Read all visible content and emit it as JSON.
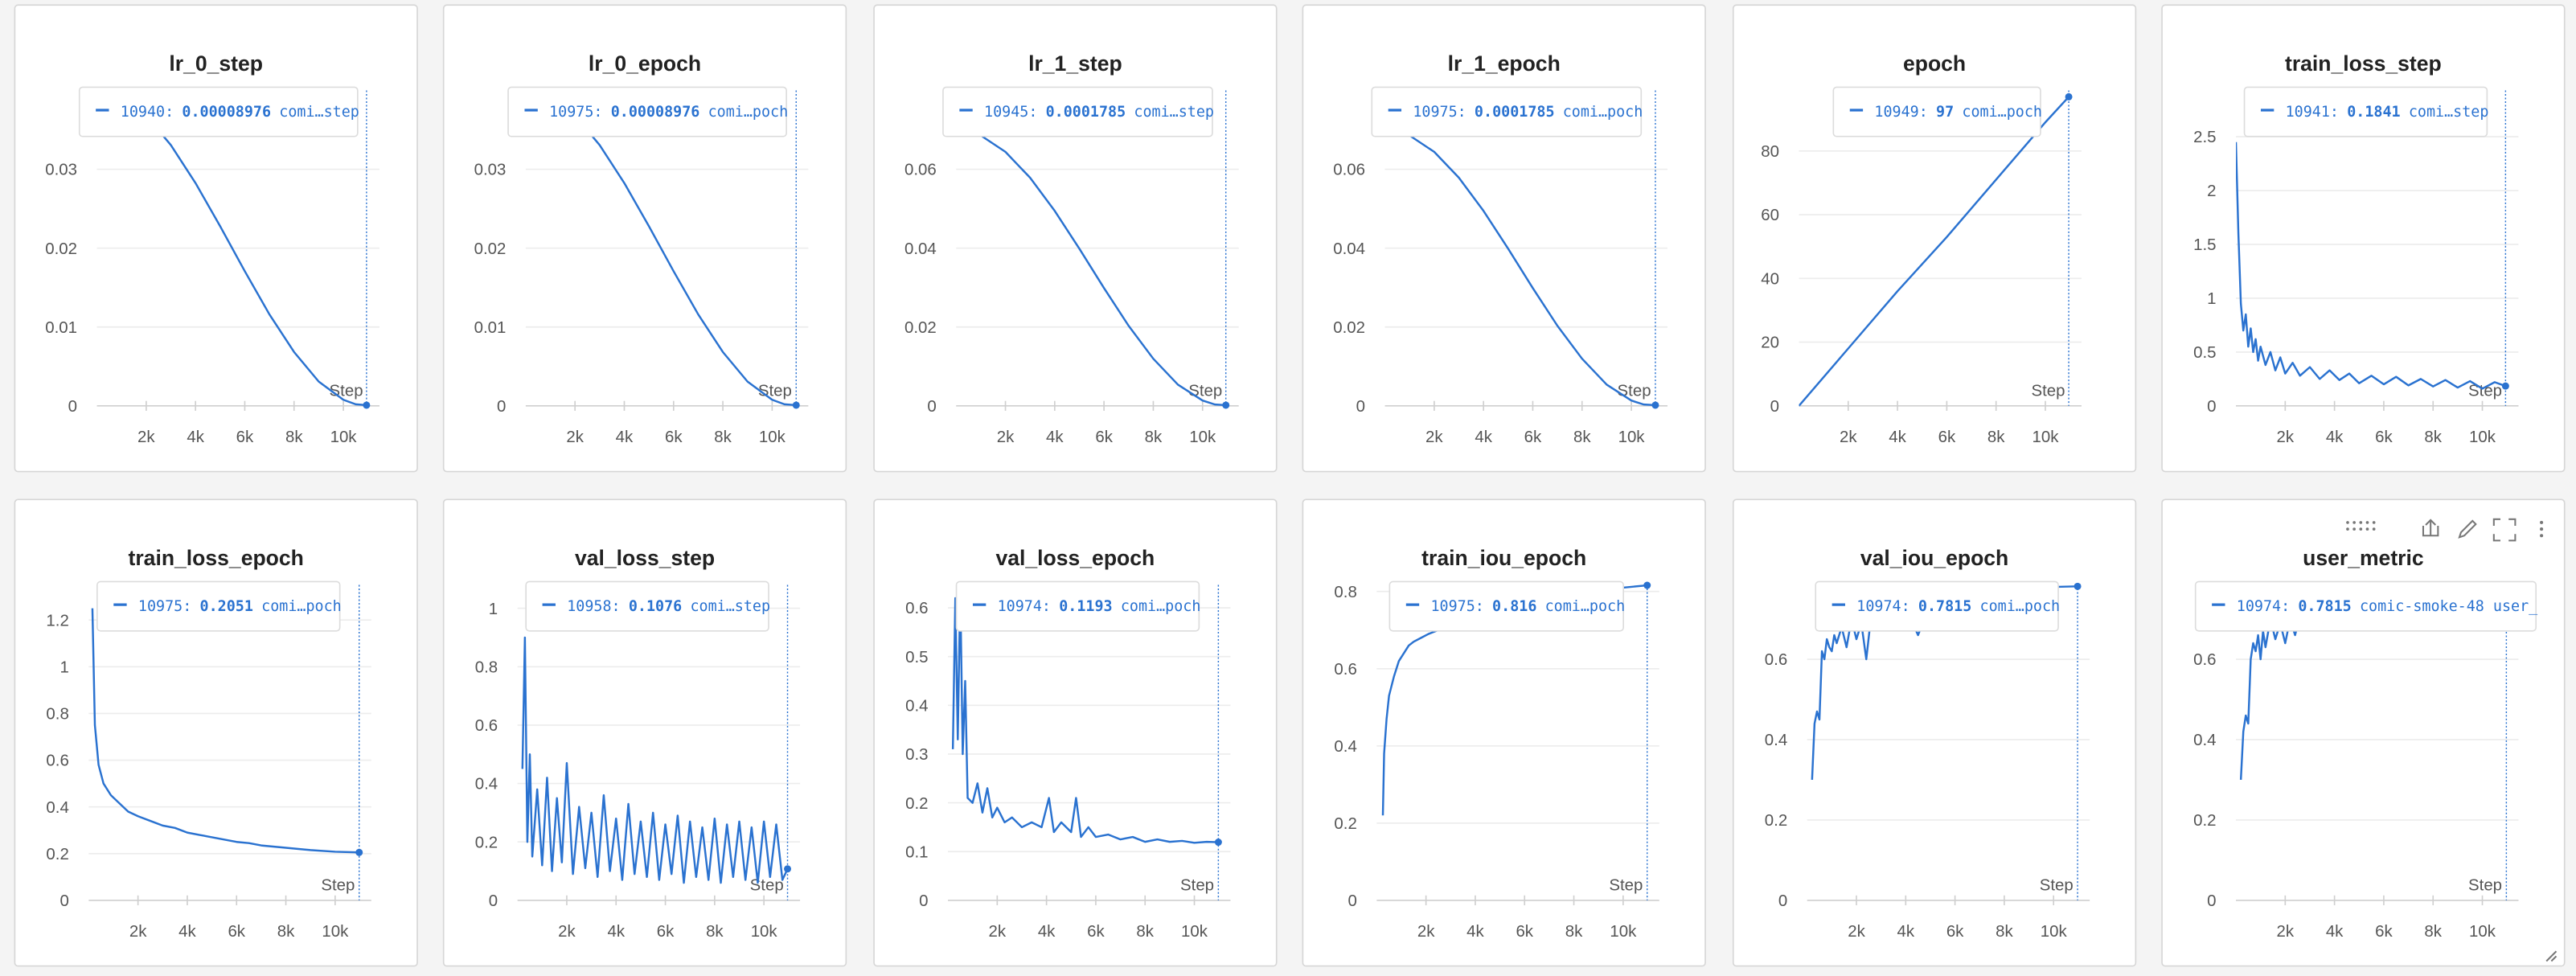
{
  "chart_data": [
    {
      "type": "line",
      "title": "lr_0_step",
      "color": "#2a72d0",
      "grid": true,
      "x_label": "Step",
      "tooltip": {
        "step": {
          "value": 10940,
          "label": "10940:"
        },
        "value": 8.976e-05,
        "run": "comi…step"
      },
      "x": [
        0,
        1000,
        2000,
        3000,
        4000,
        5000,
        6000,
        7000,
        8000,
        9000,
        10000,
        10500,
        10940
      ],
      "values": [
        0.04,
        0.03919,
        0.03681,
        0.03307,
        0.02826,
        0.02278,
        0.01708,
        0.0116,
        0.00683,
        0.00308,
        0.00077,
        0.0002,
        8.976e-05
      ],
      "xlim": [
        0,
        11200
      ],
      "ylim": [
        0,
        0.04
      ],
      "yticks": [
        0,
        0.01,
        0.02,
        0.03
      ],
      "xticks": [
        {
          "value": 2000,
          "label": "2k"
        },
        {
          "value": 4000,
          "label": "4k"
        },
        {
          "value": 6000,
          "label": "6k"
        },
        {
          "value": 8000,
          "label": "8k"
        },
        {
          "value": 10000,
          "label": "10k"
        }
      ]
    },
    {
      "type": "line",
      "title": "lr_0_epoch",
      "color": "#2a72d0",
      "grid": true,
      "x_label": "Step",
      "tooltip": {
        "step": {
          "value": 10975,
          "label": "10975:"
        },
        "value": 8.976e-05,
        "run": "comi…poch"
      },
      "x": [
        0,
        1000,
        2000,
        3000,
        4000,
        5000,
        6000,
        7000,
        8000,
        9000,
        10000,
        10500,
        10975
      ],
      "values": [
        0.04,
        0.03919,
        0.03681,
        0.03307,
        0.02826,
        0.02278,
        0.01708,
        0.0116,
        0.00683,
        0.00308,
        0.00077,
        0.0002,
        8.976e-05
      ],
      "xlim": [
        0,
        11200
      ],
      "ylim": [
        0,
        0.04
      ],
      "yticks": [
        0,
        0.01,
        0.02,
        0.03
      ],
      "xticks": [
        {
          "value": 2000,
          "label": "2k"
        },
        {
          "value": 4000,
          "label": "4k"
        },
        {
          "value": 6000,
          "label": "6k"
        },
        {
          "value": 8000,
          "label": "8k"
        },
        {
          "value": 10000,
          "label": "10k"
        }
      ]
    },
    {
      "type": "line",
      "title": "lr_1_step",
      "color": "#2a72d0",
      "grid": true,
      "x_label": "Step",
      "tooltip": {
        "step": {
          "value": 10945,
          "label": "10945:"
        },
        "value": 0.0001785,
        "run": "comi…step"
      },
      "x": [
        0,
        1000,
        2000,
        3000,
        4000,
        5000,
        6000,
        7000,
        8000,
        9000,
        10000,
        10500,
        10945
      ],
      "values": [
        0.07,
        0.06858,
        0.06442,
        0.05787,
        0.04946,
        0.03987,
        0.02988,
        0.02031,
        0.01196,
        0.00538,
        0.00135,
        0.00035,
        0.0001785
      ],
      "xlim": [
        0,
        11200
      ],
      "ylim": [
        0,
        0.08
      ],
      "yticks": [
        0,
        0.02,
        0.04,
        0.06
      ],
      "xticks": [
        {
          "value": 2000,
          "label": "2k"
        },
        {
          "value": 4000,
          "label": "4k"
        },
        {
          "value": 6000,
          "label": "6k"
        },
        {
          "value": 8000,
          "label": "8k"
        },
        {
          "value": 10000,
          "label": "10k"
        }
      ]
    },
    {
      "type": "line",
      "title": "lr_1_epoch",
      "color": "#2a72d0",
      "grid": true,
      "x_label": "Step",
      "tooltip": {
        "step": {
          "value": 10975,
          "label": "10975:"
        },
        "value": 0.0001785,
        "run": "comi…poch"
      },
      "x": [
        0,
        1000,
        2000,
        3000,
        4000,
        5000,
        6000,
        7000,
        8000,
        9000,
        10000,
        10500,
        10975
      ],
      "values": [
        0.07,
        0.06858,
        0.06442,
        0.05787,
        0.04946,
        0.03987,
        0.02988,
        0.02031,
        0.01196,
        0.00538,
        0.00135,
        0.00035,
        0.0001785
      ],
      "xlim": [
        0,
        11200
      ],
      "ylim": [
        0,
        0.08
      ],
      "yticks": [
        0,
        0.02,
        0.04,
        0.06
      ],
      "xticks": [
        {
          "value": 2000,
          "label": "2k"
        },
        {
          "value": 4000,
          "label": "4k"
        },
        {
          "value": 6000,
          "label": "6k"
        },
        {
          "value": 8000,
          "label": "8k"
        },
        {
          "value": 10000,
          "label": "10k"
        }
      ]
    },
    {
      "type": "line",
      "title": "epoch",
      "color": "#2a72d0",
      "grid": true,
      "x_label": "Step",
      "tooltip": {
        "step": {
          "value": 10949,
          "label": "10949:"
        },
        "value": 97,
        "run": "comi…poch"
      },
      "x": [
        0,
        2000,
        4000,
        6000,
        8000,
        10000,
        10949
      ],
      "values": [
        0,
        18,
        36,
        53,
        71,
        89,
        97
      ],
      "xlim": [
        0,
        11200
      ],
      "ylim": [
        0,
        99
      ],
      "yticks": [
        0,
        20,
        40,
        60,
        80
      ],
      "xticks": [
        {
          "value": 2000,
          "label": "2k"
        },
        {
          "value": 4000,
          "label": "4k"
        },
        {
          "value": 6000,
          "label": "6k"
        },
        {
          "value": 8000,
          "label": "8k"
        },
        {
          "value": 10000,
          "label": "10k"
        }
      ]
    },
    {
      "type": "line",
      "title": "train_loss_step",
      "color": "#2a72d0",
      "grid": true,
      "x_label": "Step",
      "tooltip": {
        "step": {
          "value": 10941,
          "label": "10941:"
        },
        "value": 0.1841,
        "run": "comi…step"
      },
      "x": [
        0,
        100,
        200,
        300,
        400,
        500,
        600,
        700,
        800,
        900,
        1000,
        1200,
        1400,
        1600,
        1800,
        2000,
        2300,
        2600,
        3000,
        3400,
        3800,
        4200,
        4600,
        5000,
        5500,
        6000,
        6500,
        7000,
        7500,
        8000,
        8500,
        9000,
        9500,
        10000,
        10500,
        10941
      ],
      "values": [
        2.45,
        1.6,
        0.95,
        0.7,
        0.85,
        0.55,
        0.72,
        0.5,
        0.62,
        0.42,
        0.55,
        0.38,
        0.5,
        0.33,
        0.45,
        0.3,
        0.4,
        0.28,
        0.36,
        0.25,
        0.33,
        0.24,
        0.3,
        0.21,
        0.28,
        0.2,
        0.27,
        0.19,
        0.25,
        0.18,
        0.24,
        0.17,
        0.23,
        0.16,
        0.22,
        0.1841
      ],
      "xlim": [
        0,
        11200
      ],
      "ylim": [
        0,
        2.93
      ],
      "yticks": [
        0,
        0.5,
        1,
        1.5,
        2,
        2.5
      ],
      "xticks": [
        {
          "value": 2000,
          "label": "2k"
        },
        {
          "value": 4000,
          "label": "4k"
        },
        {
          "value": 6000,
          "label": "6k"
        },
        {
          "value": 8000,
          "label": "8k"
        },
        {
          "value": 10000,
          "label": "10k"
        }
      ]
    },
    {
      "type": "line",
      "title": "train_loss_epoch",
      "color": "#2a72d0",
      "grid": true,
      "x_label": "Step",
      "tooltip": {
        "step": {
          "value": 10975,
          "label": "10975:"
        },
        "value": 0.2051,
        "run": "comi…poch"
      },
      "x": [
        150,
        250,
        400,
        600,
        900,
        1200,
        1600,
        2000,
        2500,
        3000,
        3500,
        4000,
        4500,
        5000,
        5500,
        6000,
        6500,
        7000,
        8000,
        9000,
        10000,
        10975
      ],
      "values": [
        1.25,
        0.75,
        0.58,
        0.5,
        0.45,
        0.42,
        0.38,
        0.36,
        0.34,
        0.32,
        0.31,
        0.29,
        0.28,
        0.27,
        0.26,
        0.25,
        0.245,
        0.235,
        0.225,
        0.215,
        0.208,
        0.2051
      ],
      "xlim": [
        0,
        11200
      ],
      "ylim": [
        0,
        1.35
      ],
      "yticks": [
        0,
        0.2,
        0.4,
        0.6,
        0.8,
        1,
        1.2
      ],
      "xticks": [
        {
          "value": 2000,
          "label": "2k"
        },
        {
          "value": 4000,
          "label": "4k"
        },
        {
          "value": 6000,
          "label": "6k"
        },
        {
          "value": 8000,
          "label": "8k"
        },
        {
          "value": 10000,
          "label": "10k"
        }
      ]
    },
    {
      "type": "line",
      "title": "val_loss_step",
      "color": "#2a72d0",
      "grid": true,
      "x_label": "Step",
      "tooltip": {
        "step": {
          "value": 10958,
          "label": "10958:"
        },
        "value": 0.1076,
        "run": "comi…step"
      },
      "x": [
        200,
        300,
        400,
        500,
        600,
        800,
        1000,
        1200,
        1400,
        1600,
        1800,
        2000,
        2250,
        2500,
        2750,
        3000,
        3250,
        3500,
        3750,
        4000,
        4250,
        4500,
        4750,
        5000,
        5250,
        5500,
        5750,
        6000,
        6250,
        6500,
        6750,
        7000,
        7250,
        7500,
        7750,
        8000,
        8250,
        8500,
        8750,
        9000,
        9250,
        9500,
        9750,
        10000,
        10250,
        10500,
        10750,
        10958
      ],
      "values": [
        0.45,
        0.9,
        0.2,
        0.5,
        0.15,
        0.38,
        0.12,
        0.42,
        0.1,
        0.35,
        0.13,
        0.47,
        0.09,
        0.32,
        0.11,
        0.3,
        0.08,
        0.36,
        0.1,
        0.28,
        0.07,
        0.33,
        0.09,
        0.27,
        0.08,
        0.3,
        0.07,
        0.26,
        0.09,
        0.29,
        0.06,
        0.27,
        0.08,
        0.25,
        0.07,
        0.28,
        0.06,
        0.26,
        0.08,
        0.27,
        0.07,
        0.25,
        0.06,
        0.27,
        0.08,
        0.26,
        0.07,
        0.1076
      ],
      "xlim": [
        0,
        11200
      ],
      "ylim": [
        0,
        1.08
      ],
      "yticks": [
        0,
        0.2,
        0.4,
        0.6,
        0.8,
        1
      ],
      "xticks": [
        {
          "value": 2000,
          "label": "2k"
        },
        {
          "value": 4000,
          "label": "4k"
        },
        {
          "value": 6000,
          "label": "6k"
        },
        {
          "value": 8000,
          "label": "8k"
        },
        {
          "value": 10000,
          "label": "10k"
        }
      ]
    },
    {
      "type": "line",
      "title": "val_loss_epoch",
      "color": "#2a72d0",
      "grid": true,
      "x_label": "Step",
      "tooltip": {
        "step": {
          "value": 10974,
          "label": "10974:"
        },
        "value": 0.1193,
        "run": "comi…poch"
      },
      "x": [
        200,
        300,
        400,
        500,
        600,
        700,
        800,
        1000,
        1200,
        1400,
        1600,
        1800,
        2000,
        2300,
        2600,
        3000,
        3400,
        3800,
        4100,
        4300,
        4600,
        5000,
        5200,
        5400,
        5700,
        6000,
        6500,
        7000,
        7500,
        8000,
        8500,
        9000,
        9500,
        10000,
        10500,
        10974
      ],
      "values": [
        0.31,
        0.62,
        0.33,
        0.64,
        0.3,
        0.45,
        0.21,
        0.2,
        0.24,
        0.18,
        0.23,
        0.17,
        0.19,
        0.16,
        0.17,
        0.15,
        0.16,
        0.15,
        0.21,
        0.14,
        0.16,
        0.14,
        0.21,
        0.13,
        0.15,
        0.13,
        0.135,
        0.125,
        0.13,
        0.12,
        0.125,
        0.12,
        0.122,
        0.118,
        0.12,
        0.1193
      ],
      "xlim": [
        0,
        11200
      ],
      "ylim": [
        0,
        0.647
      ],
      "yticks": [
        0,
        0.1,
        0.2,
        0.3,
        0.4,
        0.5,
        0.6
      ],
      "xticks": [
        {
          "value": 2000,
          "label": "2k"
        },
        {
          "value": 4000,
          "label": "4k"
        },
        {
          "value": 6000,
          "label": "6k"
        },
        {
          "value": 8000,
          "label": "8k"
        },
        {
          "value": 10000,
          "label": "10k"
        }
      ]
    },
    {
      "type": "line",
      "title": "train_iou_epoch",
      "color": "#2a72d0",
      "grid": true,
      "x_label": "Step",
      "tooltip": {
        "step": {
          "value": 10975,
          "label": "10975:"
        },
        "value": 0.816,
        "run": "comi…poch"
      },
      "x": [
        250,
        300,
        400,
        500,
        700,
        900,
        1100,
        1300,
        1500,
        1800,
        2100,
        2500,
        3000,
        4000,
        5000,
        6000,
        7000,
        8000,
        9000,
        10000,
        10975
      ],
      "values": [
        0.22,
        0.38,
        0.47,
        0.53,
        0.58,
        0.62,
        0.64,
        0.66,
        0.67,
        0.68,
        0.69,
        0.7,
        0.72,
        0.74,
        0.76,
        0.77,
        0.785,
        0.795,
        0.805,
        0.81,
        0.816
      ],
      "xlim": [
        0,
        11200
      ],
      "ylim": [
        0,
        0.817
      ],
      "yticks": [
        0,
        0.2,
        0.4,
        0.6,
        0.8
      ],
      "xticks": [
        {
          "value": 2000,
          "label": "2k"
        },
        {
          "value": 4000,
          "label": "4k"
        },
        {
          "value": 6000,
          "label": "6k"
        },
        {
          "value": 8000,
          "label": "8k"
        },
        {
          "value": 10000,
          "label": "10k"
        }
      ]
    },
    {
      "type": "line",
      "title": "val_iou_epoch",
      "color": "#2a72d0",
      "grid": true,
      "x_label": "Step",
      "tooltip": {
        "step": {
          "value": 10974,
          "label": "10974:"
        },
        "value": 0.7815,
        "run": "comi…poch"
      },
      "x": [
        200,
        300,
        400,
        500,
        600,
        700,
        800,
        900,
        1000,
        1100,
        1200,
        1400,
        1600,
        1800,
        2000,
        2200,
        2400,
        2600,
        2800,
        3000,
        3500,
        4000,
        4500,
        5000,
        6000,
        7000,
        8000,
        9000,
        10000,
        10974
      ],
      "values": [
        0.3,
        0.44,
        0.47,
        0.45,
        0.62,
        0.6,
        0.65,
        0.63,
        0.62,
        0.66,
        0.64,
        0.68,
        0.63,
        0.7,
        0.65,
        0.69,
        0.6,
        0.71,
        0.68,
        0.72,
        0.7,
        0.73,
        0.66,
        0.74,
        0.75,
        0.76,
        0.77,
        0.775,
        0.78,
        0.7815
      ],
      "xlim": [
        0,
        11200
      ],
      "ylim": [
        0,
        0.785
      ],
      "yticks": [
        0,
        0.2,
        0.4,
        0.6
      ],
      "xticks": [
        {
          "value": 2000,
          "label": "2k"
        },
        {
          "value": 4000,
          "label": "4k"
        },
        {
          "value": 6000,
          "label": "6k"
        },
        {
          "value": 8000,
          "label": "8k"
        },
        {
          "value": 10000,
          "label": "10k"
        }
      ]
    },
    {
      "type": "line",
      "title": "user_metric",
      "color": "#2a72d0",
      "grid": true,
      "x_label": "Step",
      "tooltip": {
        "step": {
          "value": 10974,
          "label": "10974:"
        },
        "value": 0.7815,
        "run": "comic-smoke-48 user_"
      },
      "x": [
        200,
        300,
        400,
        500,
        600,
        700,
        800,
        900,
        1000,
        1100,
        1200,
        1400,
        1600,
        1800,
        2000,
        2200,
        2400,
        2600,
        2800,
        3000,
        3500,
        4000,
        4500,
        5000,
        6000,
        7000,
        8000,
        9000,
        10000,
        10974
      ],
      "values": [
        0.3,
        0.42,
        0.46,
        0.44,
        0.6,
        0.64,
        0.62,
        0.66,
        0.6,
        0.67,
        0.63,
        0.7,
        0.65,
        0.69,
        0.64,
        0.7,
        0.66,
        0.71,
        0.69,
        0.72,
        0.7,
        0.73,
        0.68,
        0.74,
        0.75,
        0.76,
        0.77,
        0.775,
        0.78,
        0.7815
      ],
      "xlim": [
        0,
        11200
      ],
      "ylim": [
        0,
        0.785
      ],
      "yticks": [
        0,
        0.2,
        0.4,
        0.6
      ],
      "xticks": [
        {
          "value": 2000,
          "label": "2k"
        },
        {
          "value": 4000,
          "label": "4k"
        },
        {
          "value": 6000,
          "label": "6k"
        },
        {
          "value": 8000,
          "label": "8k"
        },
        {
          "value": 10000,
          "label": "10k"
        }
      ]
    }
  ]
}
